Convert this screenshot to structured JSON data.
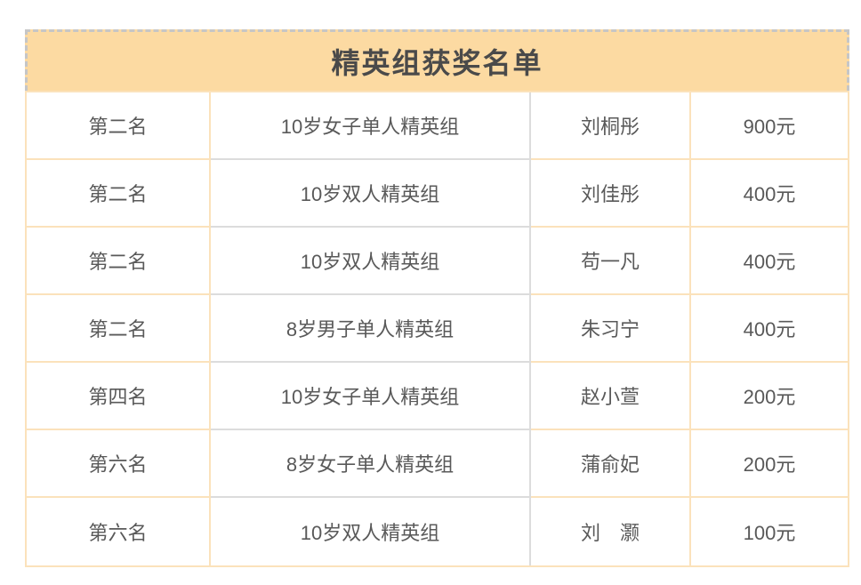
{
  "table": {
    "title": "精英组获奖名单",
    "columns": [
      "rank",
      "category",
      "name",
      "prize"
    ],
    "rows": [
      {
        "rank": "第二名",
        "category": "10岁女子单人精英组",
        "name": "刘桐彤",
        "prize": "900元"
      },
      {
        "rank": "第二名",
        "category": "10岁双人精英组",
        "name": "刘佳彤",
        "prize": "400元"
      },
      {
        "rank": "第二名",
        "category": "10岁双人精英组",
        "name": "苟一凡",
        "prize": "400元"
      },
      {
        "rank": "第二名",
        "category": "8岁男子单人精英组",
        "name": "朱习宁",
        "prize": "400元"
      },
      {
        "rank": "第四名",
        "category": "10岁女子单人精英组",
        "name": "赵小萱",
        "prize": "200元"
      },
      {
        "rank": "第六名",
        "category": "8岁女子单人精英组",
        "name": "蒲俞妃",
        "prize": "200元"
      },
      {
        "rank": "第六名",
        "category": "10岁双人精英组",
        "name": "刘　灏",
        "prize": "100元"
      }
    ],
    "colors": {
      "header_fill": "#fcdaa2",
      "border_orange": "#fbe2bb",
      "border_gray": "#dcdcdc",
      "selection_marquee_gray": "#c6c6c6",
      "body_text": "#595959",
      "title_text": "#4a4a4a"
    }
  }
}
